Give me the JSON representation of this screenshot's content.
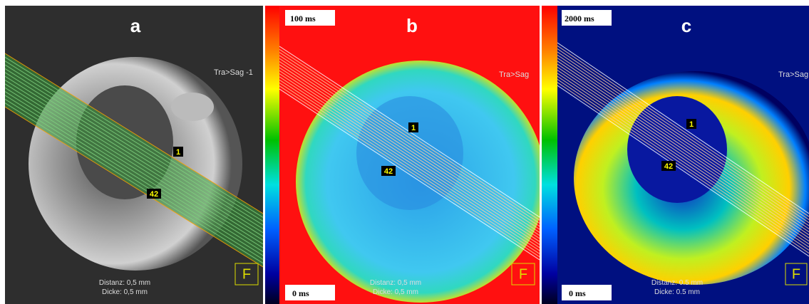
{
  "panels": [
    {
      "label": "a",
      "sequence_label": "Tra>Sag -1",
      "markers": [
        "1",
        "42"
      ],
      "distance": "Distanz: 0,5 mm",
      "thickness": "Dicke: 0,5 mm",
      "logo": "F"
    },
    {
      "label": "b",
      "scale_max": "100 ms",
      "scale_min": "0 ms",
      "sequence_label": "Tra>Sag",
      "markers": [
        "1",
        "42"
      ],
      "distance": "Distanz: 0,5 mm",
      "thickness": "Dicke: 0,5 mm",
      "logo": "F"
    },
    {
      "label": "c",
      "scale_max": "2000 ms",
      "scale_min": "0 ms",
      "sequence_label": "Tra>Sag",
      "markers": [
        "1",
        "42"
      ],
      "distance": "Distanz: 0.5 mm",
      "thickness": "Dicke: 0.5 mm",
      "logo": "F"
    }
  ]
}
